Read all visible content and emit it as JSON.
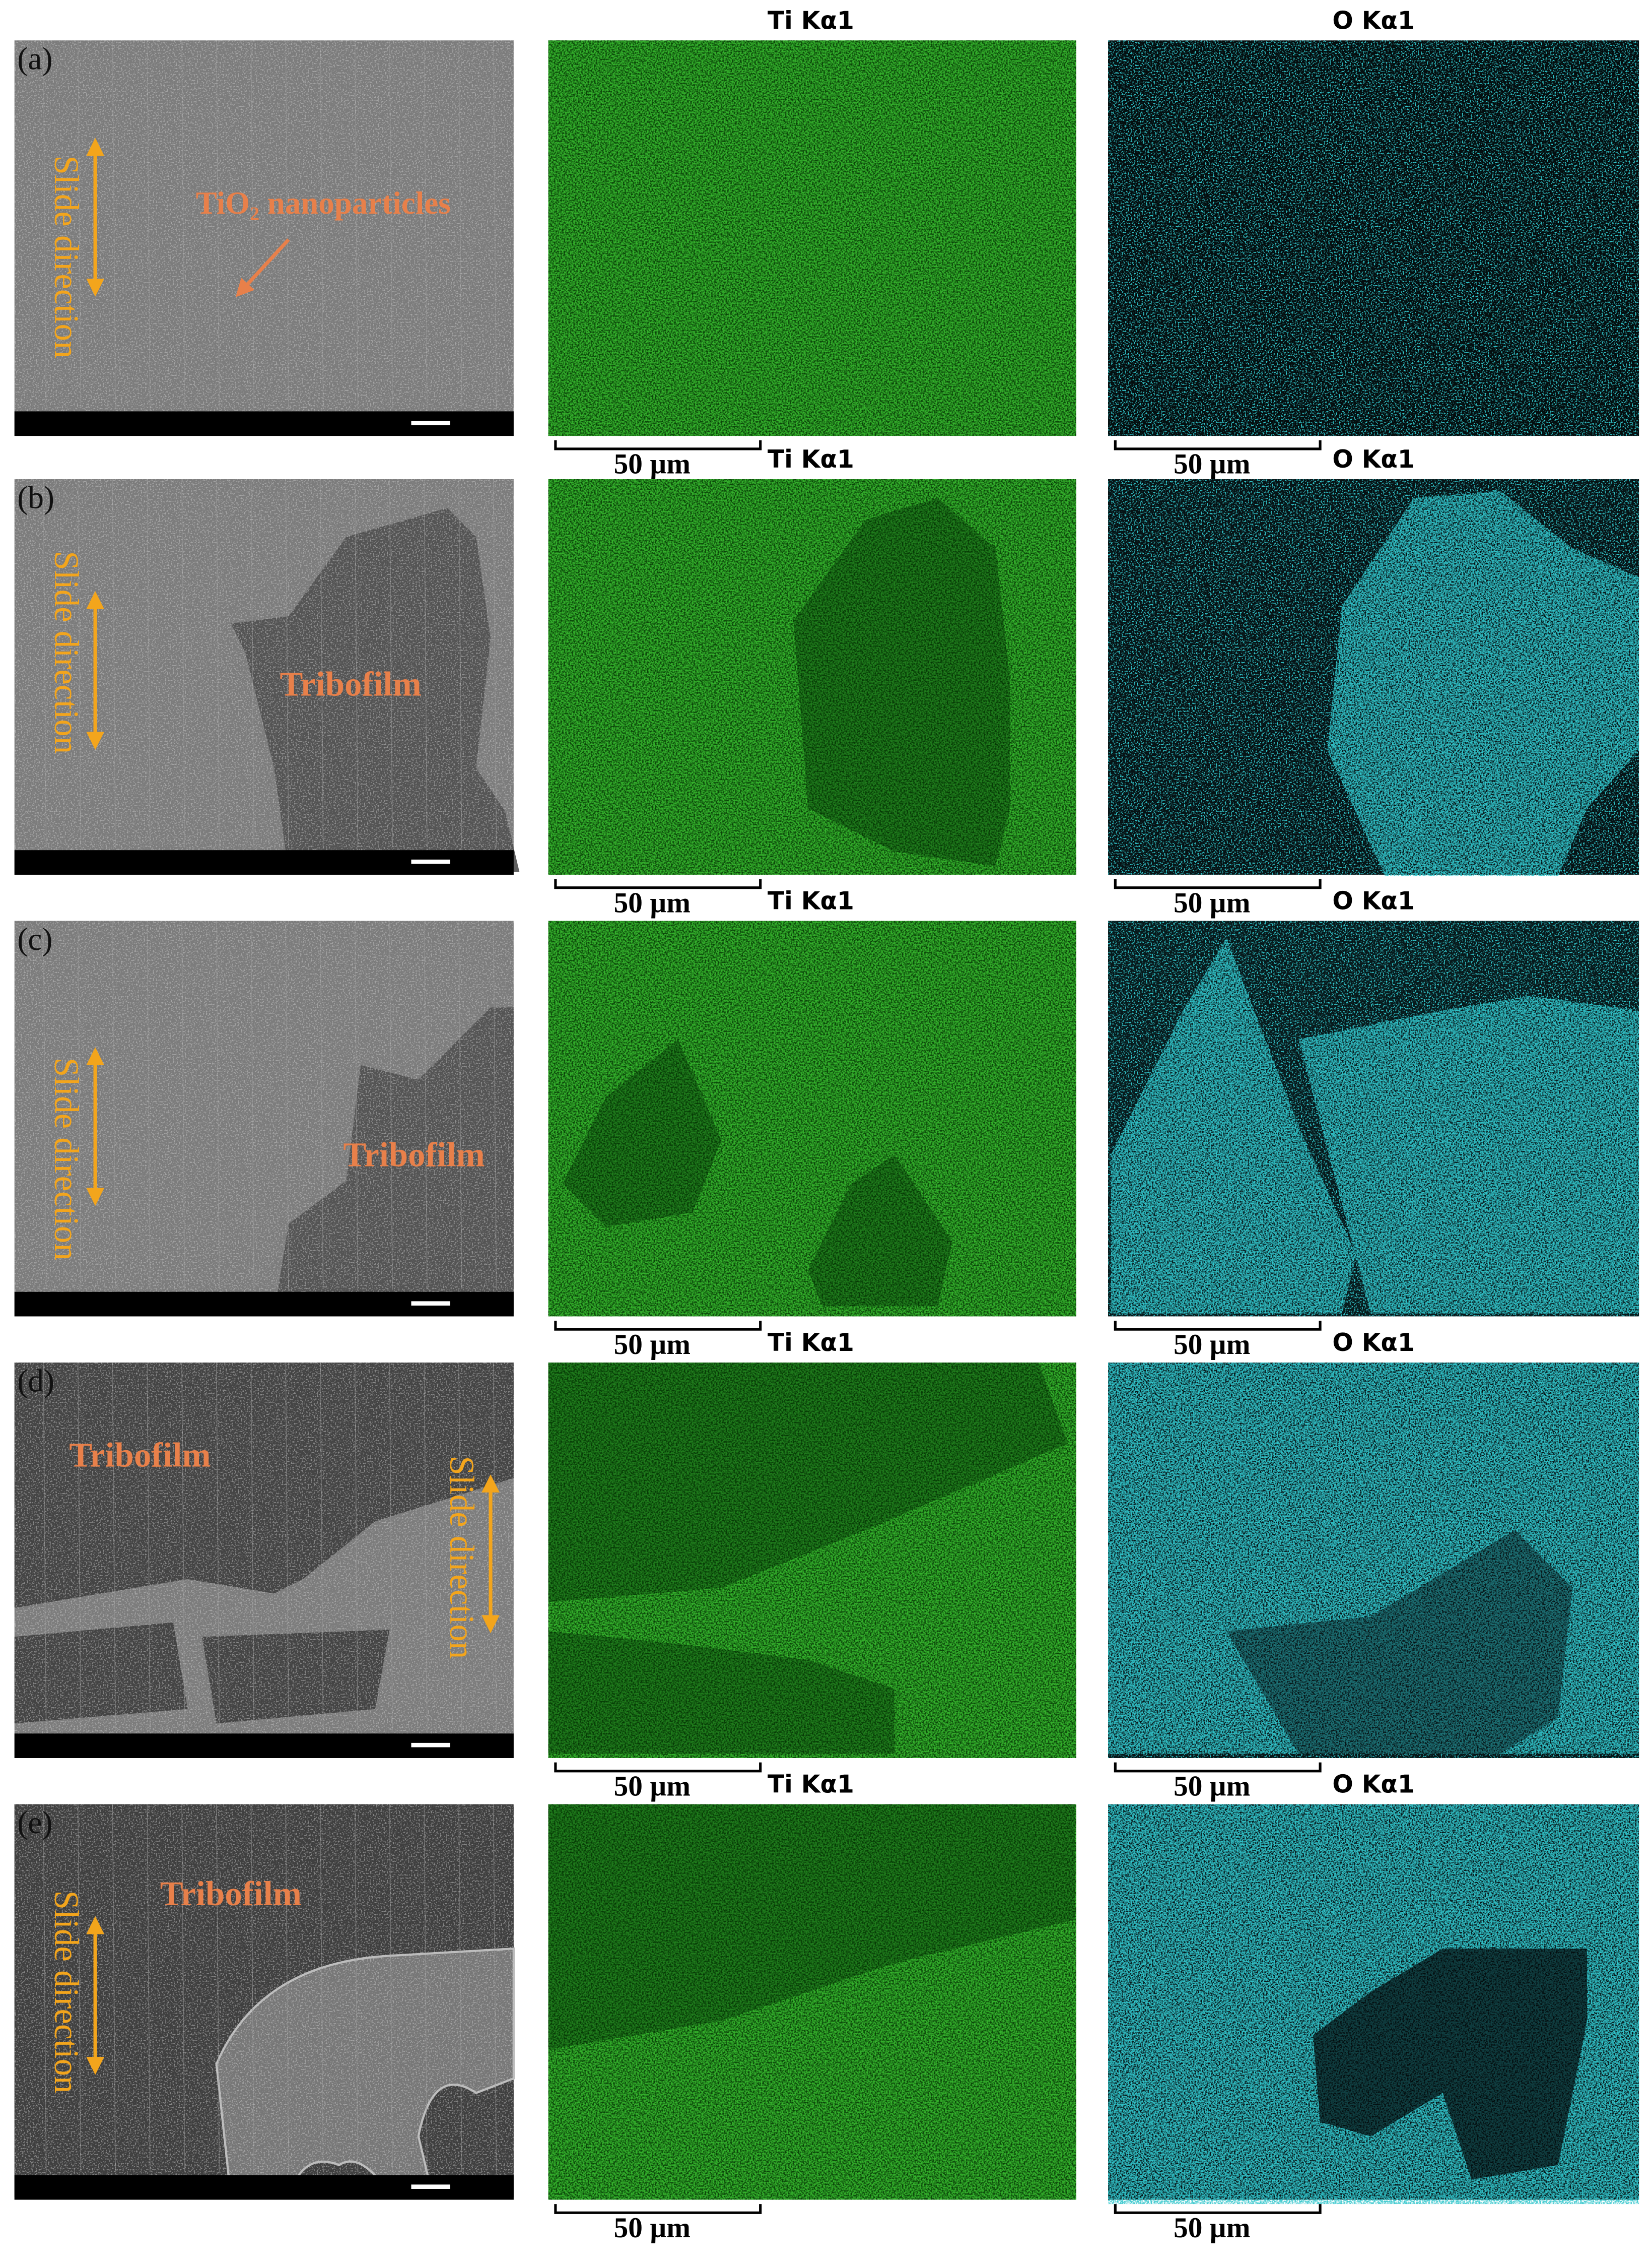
{
  "figure": {
    "panels": [
      {
        "label": "(a)",
        "slide_direction": "Slide direction",
        "annotation": "TiO₂ nanoparticles",
        "ti_title": "Ti Kα1",
        "o_title": "O Kα1",
        "ti_scale": "50 µm",
        "o_scale": "50 µm"
      },
      {
        "label": "(b)",
        "slide_direction": "Slide direction",
        "annotation": "Tribofilm",
        "ti_title": "Ti Kα1",
        "o_title": "O Kα1",
        "ti_scale": "50 µm",
        "o_scale": "50 µm"
      },
      {
        "label": "(c)",
        "slide_direction": "Slide direction",
        "annotation": "Tribofilm",
        "ti_title": "Ti Kα1",
        "o_title": "O Kα1",
        "ti_scale": "50 µm",
        "o_scale": "50 µm"
      },
      {
        "label": "(d)",
        "slide_direction": "Slide direction",
        "annotation": "Tribofilm",
        "ti_title": "Ti Kα1",
        "o_title": "O Kα1",
        "ti_scale": "50 µm",
        "o_scale": "50 µm"
      },
      {
        "label": "(e)",
        "slide_direction": "Slide direction",
        "annotation": "Tribofilm",
        "ti_title": "Ti Kα1",
        "o_title": "O Kα1",
        "ti_scale": "50 µm",
        "o_scale": "50 µm"
      }
    ]
  }
}
